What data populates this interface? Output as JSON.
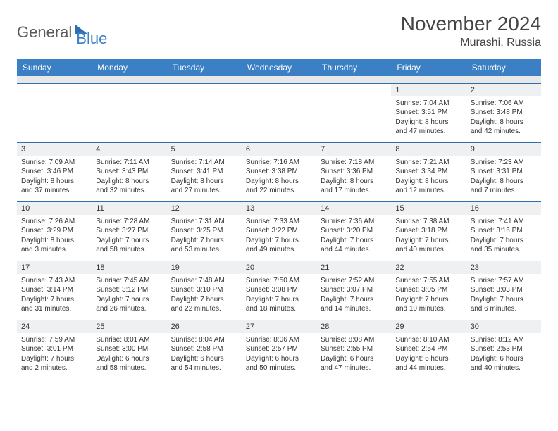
{
  "logo": {
    "general": "General",
    "blue": "Blue"
  },
  "title": "November 2024",
  "location": "Murashi, Russia",
  "colors": {
    "header_bg": "#3b7fc4",
    "header_fg": "#ffffff",
    "daynum_bg": "#eef0f2",
    "border": "#2e6fb0",
    "spacer": "#e8e8e8",
    "text": "#333333"
  },
  "weekdays": [
    "Sunday",
    "Monday",
    "Tuesday",
    "Wednesday",
    "Thursday",
    "Friday",
    "Saturday"
  ],
  "weeks": [
    [
      null,
      null,
      null,
      null,
      null,
      {
        "n": "1",
        "sr": "7:04 AM",
        "ss": "3:51 PM",
        "dl": "8 hours and 47 minutes."
      },
      {
        "n": "2",
        "sr": "7:06 AM",
        "ss": "3:48 PM",
        "dl": "8 hours and 42 minutes."
      }
    ],
    [
      {
        "n": "3",
        "sr": "7:09 AM",
        "ss": "3:46 PM",
        "dl": "8 hours and 37 minutes."
      },
      {
        "n": "4",
        "sr": "7:11 AM",
        "ss": "3:43 PM",
        "dl": "8 hours and 32 minutes."
      },
      {
        "n": "5",
        "sr": "7:14 AM",
        "ss": "3:41 PM",
        "dl": "8 hours and 27 minutes."
      },
      {
        "n": "6",
        "sr": "7:16 AM",
        "ss": "3:38 PM",
        "dl": "8 hours and 22 minutes."
      },
      {
        "n": "7",
        "sr": "7:18 AM",
        "ss": "3:36 PM",
        "dl": "8 hours and 17 minutes."
      },
      {
        "n": "8",
        "sr": "7:21 AM",
        "ss": "3:34 PM",
        "dl": "8 hours and 12 minutes."
      },
      {
        "n": "9",
        "sr": "7:23 AM",
        "ss": "3:31 PM",
        "dl": "8 hours and 7 minutes."
      }
    ],
    [
      {
        "n": "10",
        "sr": "7:26 AM",
        "ss": "3:29 PM",
        "dl": "8 hours and 3 minutes."
      },
      {
        "n": "11",
        "sr": "7:28 AM",
        "ss": "3:27 PM",
        "dl": "7 hours and 58 minutes."
      },
      {
        "n": "12",
        "sr": "7:31 AM",
        "ss": "3:25 PM",
        "dl": "7 hours and 53 minutes."
      },
      {
        "n": "13",
        "sr": "7:33 AM",
        "ss": "3:22 PM",
        "dl": "7 hours and 49 minutes."
      },
      {
        "n": "14",
        "sr": "7:36 AM",
        "ss": "3:20 PM",
        "dl": "7 hours and 44 minutes."
      },
      {
        "n": "15",
        "sr": "7:38 AM",
        "ss": "3:18 PM",
        "dl": "7 hours and 40 minutes."
      },
      {
        "n": "16",
        "sr": "7:41 AM",
        "ss": "3:16 PM",
        "dl": "7 hours and 35 minutes."
      }
    ],
    [
      {
        "n": "17",
        "sr": "7:43 AM",
        "ss": "3:14 PM",
        "dl": "7 hours and 31 minutes."
      },
      {
        "n": "18",
        "sr": "7:45 AM",
        "ss": "3:12 PM",
        "dl": "7 hours and 26 minutes."
      },
      {
        "n": "19",
        "sr": "7:48 AM",
        "ss": "3:10 PM",
        "dl": "7 hours and 22 minutes."
      },
      {
        "n": "20",
        "sr": "7:50 AM",
        "ss": "3:08 PM",
        "dl": "7 hours and 18 minutes."
      },
      {
        "n": "21",
        "sr": "7:52 AM",
        "ss": "3:07 PM",
        "dl": "7 hours and 14 minutes."
      },
      {
        "n": "22",
        "sr": "7:55 AM",
        "ss": "3:05 PM",
        "dl": "7 hours and 10 minutes."
      },
      {
        "n": "23",
        "sr": "7:57 AM",
        "ss": "3:03 PM",
        "dl": "7 hours and 6 minutes."
      }
    ],
    [
      {
        "n": "24",
        "sr": "7:59 AM",
        "ss": "3:01 PM",
        "dl": "7 hours and 2 minutes."
      },
      {
        "n": "25",
        "sr": "8:01 AM",
        "ss": "3:00 PM",
        "dl": "6 hours and 58 minutes."
      },
      {
        "n": "26",
        "sr": "8:04 AM",
        "ss": "2:58 PM",
        "dl": "6 hours and 54 minutes."
      },
      {
        "n": "27",
        "sr": "8:06 AM",
        "ss": "2:57 PM",
        "dl": "6 hours and 50 minutes."
      },
      {
        "n": "28",
        "sr": "8:08 AM",
        "ss": "2:55 PM",
        "dl": "6 hours and 47 minutes."
      },
      {
        "n": "29",
        "sr": "8:10 AM",
        "ss": "2:54 PM",
        "dl": "6 hours and 44 minutes."
      },
      {
        "n": "30",
        "sr": "8:12 AM",
        "ss": "2:53 PM",
        "dl": "6 hours and 40 minutes."
      }
    ]
  ],
  "labels": {
    "sunrise": "Sunrise: ",
    "sunset": "Sunset: ",
    "daylight": "Daylight: "
  }
}
